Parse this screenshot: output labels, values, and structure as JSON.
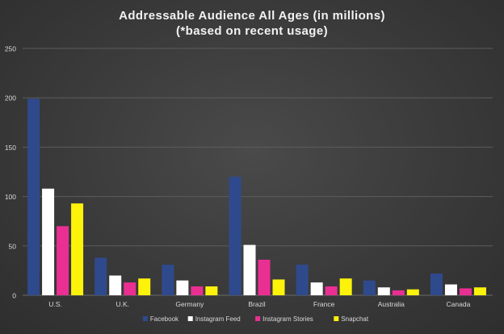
{
  "chart_data": {
    "type": "bar",
    "title": "Addressable Audience All Ages (in millions)",
    "subtitle": "(*based on recent usage)",
    "xlabel": "",
    "ylabel": "",
    "ylim": [
      0,
      250
    ],
    "yticks": [
      0,
      50,
      100,
      150,
      200,
      250
    ],
    "grid": true,
    "legend_position": "bottom",
    "categories": [
      "U.S.",
      "U.K.",
      "Germany",
      "Brazil",
      "France",
      "Australia",
      "Canada"
    ],
    "series": [
      {
        "name": "Facebook",
        "color": "#2f4a8c",
        "values": [
          199,
          38,
          31,
          120,
          31,
          15,
          22
        ]
      },
      {
        "name": "Instagram Feed",
        "color": "#ffffff",
        "values": [
          108,
          20,
          15,
          51,
          13,
          8,
          11
        ]
      },
      {
        "name": "Instagram Stories",
        "color": "#ea2f92",
        "values": [
          70,
          13,
          9,
          36,
          9,
          5,
          7
        ]
      },
      {
        "name": "Snapchat",
        "color": "#fdf20a",
        "values": [
          93,
          17,
          9,
          16,
          17,
          6,
          8
        ]
      }
    ]
  },
  "colors": {
    "background": "#3a3a3a",
    "gridline": "#5c5c5c",
    "axis_text": "#d9d9d9"
  }
}
